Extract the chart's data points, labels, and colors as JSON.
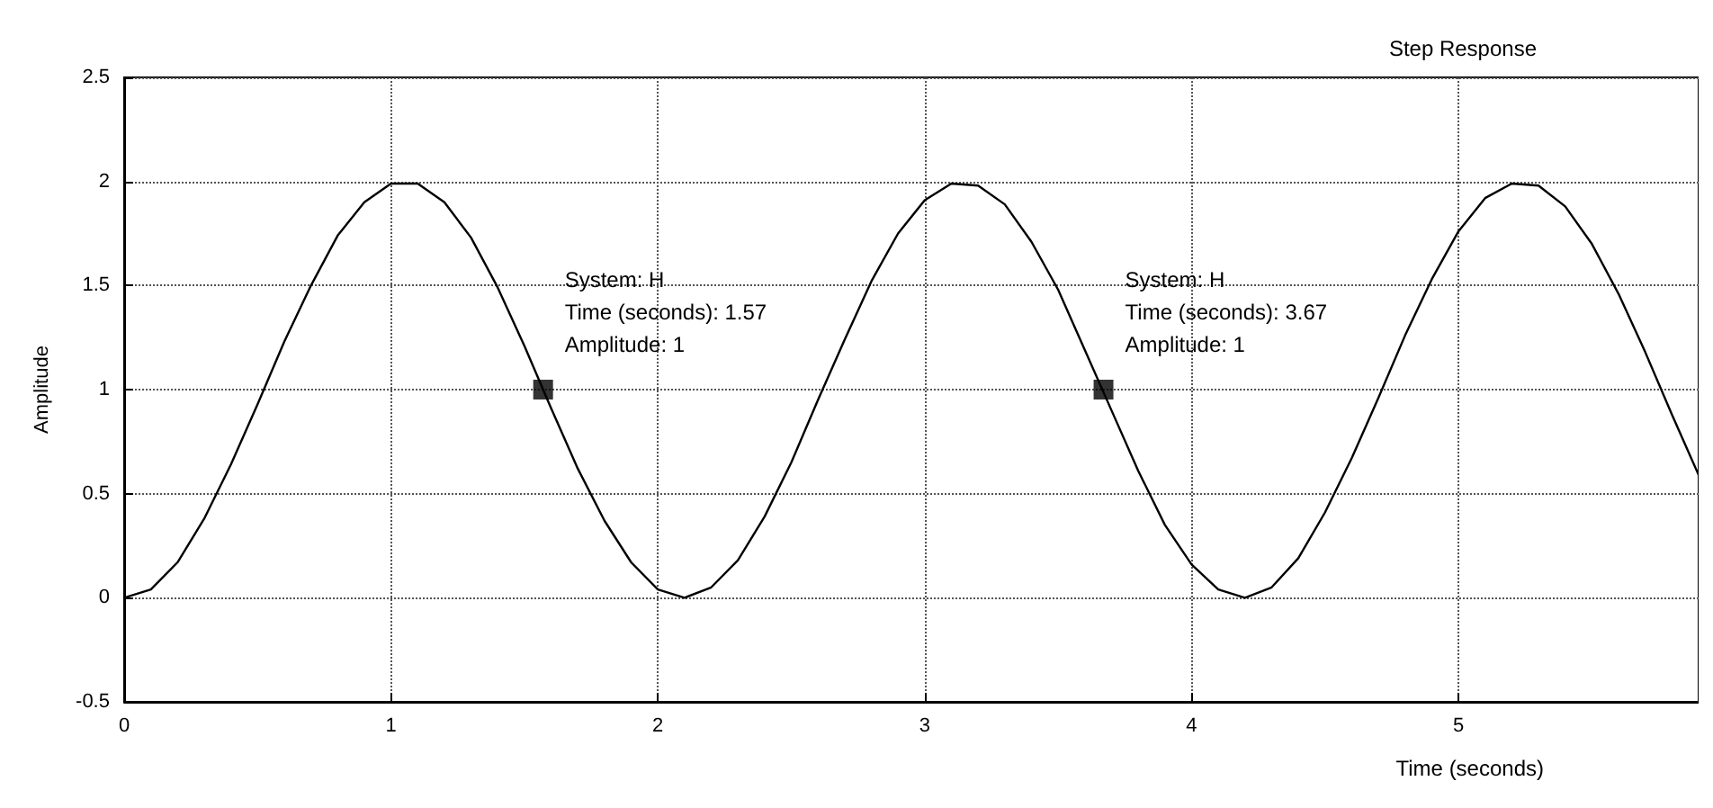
{
  "chart_data": {
    "type": "line",
    "title": "Step Response",
    "xlabel": "Time (seconds)",
    "ylabel": "Amplitude",
    "xlim": [
      0,
      5.9
    ],
    "xticks": [
      0,
      1,
      2,
      3,
      4,
      5
    ],
    "ylim": [
      -0.5,
      2.5
    ],
    "yticks": [
      -0.5,
      0,
      0.5,
      1,
      1.5,
      2,
      2.5
    ],
    "grid": true,
    "series": [
      {
        "color": "#000000",
        "marker": "none",
        "line_style": "solid",
        "x": [
          0,
          0.1,
          0.2,
          0.3,
          0.4,
          0.5,
          0.6,
          0.7,
          0.8,
          0.9,
          1.0,
          1.1,
          1.2,
          1.3,
          1.4,
          1.5,
          1.6,
          1.7,
          1.8,
          1.9,
          2.0,
          2.1,
          2.2,
          2.3,
          2.4,
          2.5,
          2.6,
          2.7,
          2.8,
          2.9,
          3.0,
          3.1,
          3.2,
          3.3,
          3.4,
          3.5,
          3.6,
          3.7,
          3.8,
          3.9,
          4.0,
          4.1,
          4.2,
          4.3,
          4.4,
          4.5,
          4.6,
          4.7,
          4.8,
          4.9,
          5.0,
          5.1,
          5.2,
          5.3,
          5.4,
          5.5,
          5.6,
          5.7,
          5.8,
          5.9
        ],
        "values": [
          0,
          0.04,
          0.17,
          0.38,
          0.64,
          0.93,
          1.23,
          1.5,
          1.74,
          1.9,
          1.99,
          1.99,
          1.9,
          1.73,
          1.49,
          1.21,
          0.91,
          0.62,
          0.37,
          0.17,
          0.04,
          0,
          0.05,
          0.18,
          0.39,
          0.65,
          0.95,
          1.24,
          1.52,
          1.75,
          1.91,
          1.99,
          1.98,
          1.89,
          1.71,
          1.48,
          1.19,
          0.9,
          0.61,
          0.35,
          0.16,
          0.04,
          0,
          0.05,
          0.19,
          0.41,
          0.67,
          0.96,
          1.26,
          1.53,
          1.76,
          1.92,
          1.99,
          1.98,
          1.88,
          1.7,
          1.46,
          1.18,
          0.88,
          0.59
        ]
      },
      {
        "type": "scatter",
        "color": "#000000",
        "marker": "square",
        "x": [
          1.57,
          3.67
        ],
        "values": [
          1,
          1
        ]
      }
    ],
    "annotations": [
      {
        "text": "System: H\nTime (seconds): 1.57\nAmplitude: 1",
        "x": 1.57,
        "y": 1
      },
      {
        "text": "System: H\nTime (seconds): 3.67\nAmplitude: 1",
        "x": 3.67,
        "y": 1
      }
    ]
  }
}
